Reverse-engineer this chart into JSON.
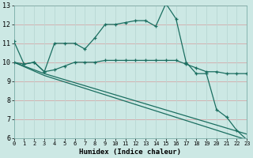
{
  "xlabel": "Humidex (Indice chaleur)",
  "bg_color": "#cce8e4",
  "grid_color_h": "#d4a8a8",
  "grid_color_v": "#b8d8d4",
  "line_color": "#1a6e60",
  "xlim": [
    0,
    23
  ],
  "ylim": [
    6,
    13
  ],
  "yticks": [
    6,
    7,
    8,
    9,
    10,
    11,
    12,
    13
  ],
  "xticks": [
    0,
    1,
    2,
    3,
    4,
    5,
    6,
    7,
    8,
    9,
    10,
    11,
    12,
    13,
    14,
    15,
    16,
    17,
    18,
    19,
    20,
    21,
    22,
    23
  ],
  "curve1_x": [
    0,
    1,
    2,
    3,
    4,
    5,
    6,
    7,
    8,
    9,
    10,
    11,
    12,
    13,
    14,
    15,
    16,
    17,
    18,
    19,
    20,
    21,
    22,
    23
  ],
  "curve1_y": [
    11.1,
    9.9,
    10.0,
    9.5,
    11.0,
    11.0,
    11.0,
    10.7,
    11.3,
    12.0,
    12.0,
    12.1,
    12.2,
    12.2,
    11.9,
    13.1,
    12.3,
    10.0,
    9.4,
    9.4,
    7.5,
    7.1,
    6.4,
    5.9
  ],
  "curve2_x": [
    0,
    1,
    2,
    3,
    4,
    5,
    6,
    7,
    8,
    9,
    10,
    11,
    12,
    13,
    14,
    15,
    16,
    17,
    18,
    19,
    20,
    21,
    22,
    23
  ],
  "curve2_y": [
    10.0,
    9.9,
    10.0,
    9.5,
    9.6,
    9.8,
    10.0,
    10.0,
    10.0,
    10.1,
    10.1,
    10.1,
    10.1,
    10.1,
    10.1,
    10.1,
    10.1,
    9.9,
    9.7,
    9.5,
    9.5,
    9.4,
    9.4,
    9.4
  ],
  "curve3_x": [
    0,
    3,
    23
  ],
  "curve3_y": [
    10.0,
    9.4,
    6.2
  ],
  "curve4_x": [
    0,
    3,
    23
  ],
  "curve4_y": [
    10.0,
    9.3,
    5.9
  ]
}
